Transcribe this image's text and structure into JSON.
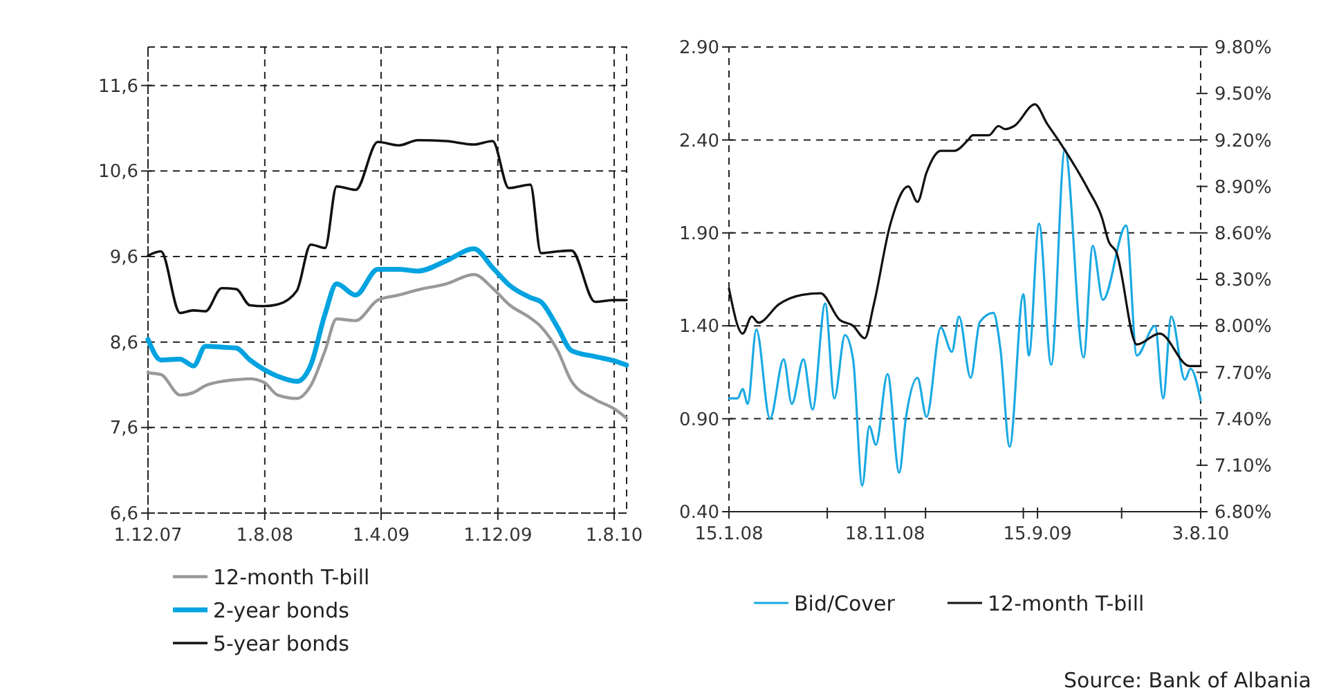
{
  "chart_data": [
    {
      "type": "line",
      "xlim": [
        "2007-12-01",
        "2010-08-27"
      ],
      "xticks": [
        {
          "value": "2007-12-01",
          "label": "1.12.07"
        },
        {
          "value": "2008-08-01",
          "label": "1.8.08"
        },
        {
          "value": "2009-04-01",
          "label": "1.4.09"
        },
        {
          "value": "2009-12-01",
          "label": "1.12.09"
        },
        {
          "value": "2010-08-01",
          "label": "1.8.10"
        }
      ],
      "ylim": [
        6.6,
        12.05
      ],
      "yticks": [
        {
          "value": 6.6,
          "label": "6,6"
        },
        {
          "value": 7.6,
          "label": "7,6"
        },
        {
          "value": 8.6,
          "label": "8,6"
        },
        {
          "value": 9.6,
          "label": "9,6"
        },
        {
          "value": 10.6,
          "label": "10,6"
        },
        {
          "value": 11.6,
          "label": "11,6"
        }
      ],
      "grid": true,
      "legend": "bottom",
      "x": [
        "2007-12-01",
        "2007-12-28",
        "2008-02-06",
        "2008-03-05",
        "2008-03-30",
        "2008-05-03",
        "2008-06-02",
        "2008-07-01",
        "2008-07-30",
        "2008-08-28",
        "2008-10-07",
        "2008-11-05",
        "2008-12-05",
        "2008-12-29",
        "2009-02-07",
        "2009-03-25",
        "2009-05-08",
        "2009-06-17",
        "2009-08-15",
        "2009-10-12",
        "2009-11-20",
        "2009-12-24",
        "2010-02-07",
        "2010-03-01",
        "2010-04-05",
        "2010-05-04",
        "2010-06-22",
        "2010-08-01",
        "2010-08-27"
      ],
      "series": [
        {
          "name": "12-month T-bill",
          "color": "#999999",
          "values": [
            8.24,
            8.22,
            7.98,
            8.01,
            8.09,
            8.14,
            8.16,
            8.17,
            8.13,
            7.98,
            7.94,
            8.09,
            8.5,
            8.87,
            8.85,
            9.09,
            9.15,
            9.21,
            9.28,
            9.39,
            9.23,
            9.04,
            8.88,
            8.78,
            8.5,
            8.14,
            7.93,
            7.82,
            7.71
          ]
        },
        {
          "name": "2-year bonds",
          "color": "#00a3e0",
          "values": [
            8.63,
            8.39,
            8.4,
            8.32,
            8.55,
            8.54,
            8.53,
            8.39,
            8.28,
            8.2,
            8.14,
            8.33,
            8.93,
            9.28,
            9.15,
            9.45,
            9.45,
            9.43,
            9.55,
            9.69,
            9.47,
            9.27,
            9.12,
            9.07,
            8.77,
            8.5,
            8.43,
            8.38,
            8.33
          ]
        },
        {
          "name": "5-year bonds",
          "color": "#111111",
          "values": [
            9.61,
            9.66,
            8.94,
            8.97,
            8.96,
            9.23,
            9.22,
            9.03,
            9.02,
            9.04,
            9.2,
            9.74,
            9.7,
            10.42,
            10.38,
            10.94,
            10.9,
            10.96,
            10.95,
            10.91,
            10.95,
            10.4,
            10.44,
            9.64,
            9.66,
            9.67,
            9.07,
            9.09,
            9.09
          ]
        }
      ]
    },
    {
      "type": "line",
      "xlim": [
        "2008-01-15",
        "2010-08-03"
      ],
      "xticks": [
        {
          "value": "2008-01-15",
          "label": "15.1.08"
        },
        {
          "value": "2008-07-27",
          "label": null
        },
        {
          "value": "2008-11-18",
          "label": "18.11.08"
        },
        {
          "value": "2009-02-06",
          "label": null
        },
        {
          "value": "2009-08-18",
          "label": null
        },
        {
          "value": "2009-09-15",
          "label": "15.9.09"
        },
        {
          "value": "2010-02-28",
          "label": null
        },
        {
          "value": "2010-08-03",
          "label": "3.8.10"
        }
      ],
      "ylim": [
        0.4,
        2.9
      ],
      "yticks": [
        {
          "value": 0.4,
          "label": "0.40"
        },
        {
          "value": 0.9,
          "label": "0.90"
        },
        {
          "value": 1.4,
          "label": "1.40"
        },
        {
          "value": 1.9,
          "label": "1.90"
        },
        {
          "value": 2.4,
          "label": "2.40"
        },
        {
          "value": 2.9,
          "label": "2.90"
        }
      ],
      "y2lim": [
        6.8,
        9.8
      ],
      "y2ticks": [
        {
          "value": 6.8,
          "label": "6.80%"
        },
        {
          "value": 7.1,
          "label": "7.10%"
        },
        {
          "value": 7.4,
          "label": "7.40%"
        },
        {
          "value": 7.7,
          "label": "7.70%"
        },
        {
          "value": 8.0,
          "label": "8.00%"
        },
        {
          "value": 8.3,
          "label": "8.30%"
        },
        {
          "value": 8.6,
          "label": "8.60%"
        },
        {
          "value": 8.9,
          "label": "8.90%"
        },
        {
          "value": 9.2,
          "label": "9.20%"
        },
        {
          "value": 9.5,
          "label": "9.50%"
        },
        {
          "value": 9.8,
          "label": "9.80%"
        }
      ],
      "grid": "y",
      "legend": "bottom",
      "annotations": [
        "Source: Bank of Albania"
      ],
      "series": [
        {
          "name": "Bid/Cover",
          "color": "#1aa9e3",
          "x": [
            "2008-01-15",
            "2008-02-01",
            "2008-02-11",
            "2008-02-21",
            "2008-03-09",
            "2008-04-05",
            "2008-05-02",
            "2008-05-18",
            "2008-06-10",
            "2008-06-28",
            "2008-07-23",
            "2008-08-10",
            "2008-08-31",
            "2008-09-16",
            "2008-10-04",
            "2008-10-18",
            "2008-10-31",
            "2008-11-23",
            "2008-12-16",
            "2008-12-29",
            "2009-01-21",
            "2009-02-08",
            "2009-03-08",
            "2009-03-30",
            "2009-04-13",
            "2009-05-06",
            "2009-05-24",
            "2009-06-20",
            "2009-07-04",
            "2009-07-22",
            "2009-08-18",
            "2009-08-29",
            "2009-09-18",
            "2009-10-12",
            "2009-11-08",
            "2009-12-15",
            "2010-01-02",
            "2010-01-22",
            "2010-03-09",
            "2010-03-30",
            "2010-05-05",
            "2010-05-21",
            "2010-06-06",
            "2010-07-03",
            "2010-07-14",
            "2010-08-03"
          ],
          "values": [
            1.01,
            1.01,
            1.06,
            0.98,
            1.38,
            0.9,
            1.22,
            0.98,
            1.22,
            0.95,
            1.52,
            1.01,
            1.35,
            1.22,
            0.54,
            0.86,
            0.76,
            1.14,
            0.61,
            0.9,
            1.12,
            0.91,
            1.39,
            1.26,
            1.45,
            1.12,
            1.42,
            1.47,
            1.27,
            0.75,
            1.57,
            1.24,
            1.95,
            1.19,
            2.35,
            1.23,
            1.83,
            1.54,
            1.94,
            1.24,
            1.4,
            1.01,
            1.45,
            1.11,
            1.17,
            1.0
          ]
        },
        {
          "name": "12-month T-bill",
          "color": "#111111",
          "axis": "y2",
          "x": [
            "2008-01-15",
            "2008-02-11",
            "2008-02-29",
            "2008-03-13",
            "2008-04-23",
            "2008-06-08",
            "2008-07-14",
            "2008-08-20",
            "2008-09-16",
            "2008-10-09",
            "2008-10-27",
            "2008-11-28",
            "2009-01-03",
            "2009-01-21",
            "2009-02-08",
            "2009-03-08",
            "2009-04-04",
            "2009-05-01",
            "2009-05-10",
            "2009-06-11",
            "2009-06-30",
            "2009-07-13",
            "2009-07-31",
            "2009-09-10",
            "2009-10-03",
            "2009-10-30",
            "2009-12-24",
            "2010-01-20",
            "2010-02-03",
            "2010-02-17",
            "2010-03-30",
            "2010-05-14",
            "2010-07-12",
            "2010-08-03"
          ],
          "values": [
            8.24,
            7.95,
            8.06,
            8.02,
            8.14,
            8.2,
            8.21,
            8.04,
            8.0,
            7.92,
            8.14,
            8.65,
            8.9,
            8.8,
            8.99,
            9.13,
            9.13,
            9.2,
            9.23,
            9.23,
            9.29,
            9.27,
            9.29,
            9.43,
            9.31,
            9.18,
            8.88,
            8.7,
            8.54,
            8.48,
            7.88,
            7.95,
            7.74,
            7.74
          ]
        }
      ]
    }
  ]
}
